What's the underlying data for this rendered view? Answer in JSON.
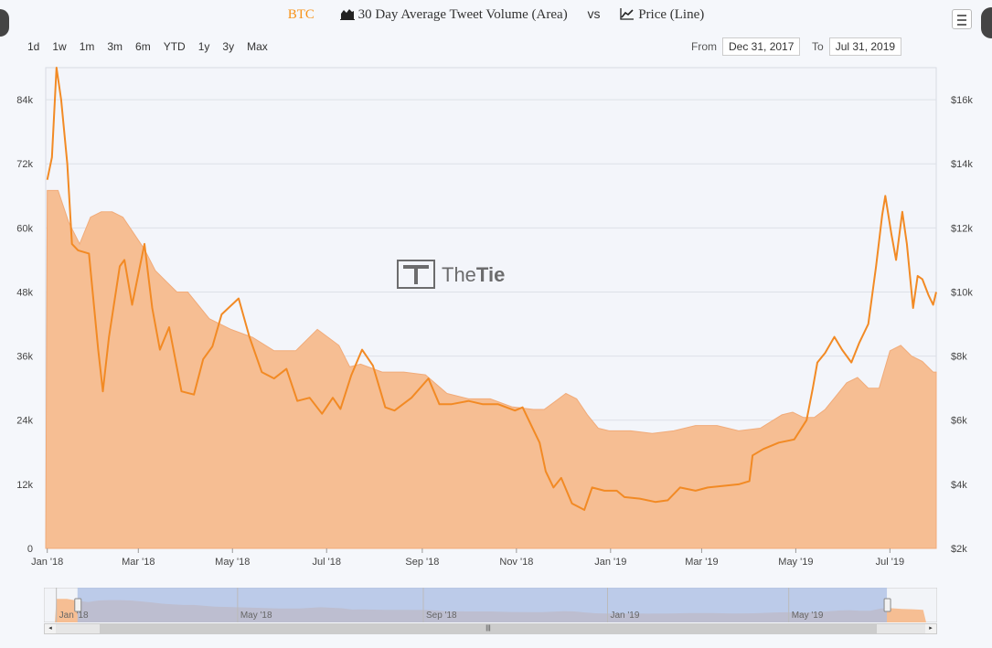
{
  "header": {
    "symbol": "BTC",
    "area_label": "30 Day Average Tweet Volume (Area)",
    "vs_label": "vs",
    "line_label": "Price (Line)"
  },
  "range_selector": {
    "buttons": [
      "1d",
      "1w",
      "1m",
      "3m",
      "6m",
      "YTD",
      "1y",
      "3y",
      "Max"
    ],
    "from_label": "From",
    "from_value": "Dec 31, 2017",
    "to_label": "To",
    "to_value": "Jul 31, 2019"
  },
  "watermark": {
    "text_light": "The",
    "text_bold": "Tie"
  },
  "colors": {
    "area_fill": "#f6be93",
    "line": "#f28a24",
    "accent": "#f7931a",
    "navigator_mask": "#a9bde4"
  },
  "chart_data": {
    "type": "area",
    "x_ticks": [
      "Jan '18",
      "Mar '18",
      "May '18",
      "Jul '18",
      "Sep '18",
      "Nov '18",
      "Jan '19",
      "Mar '19",
      "May '19",
      "Jul '19"
    ],
    "x_range": [
      "2017-12-31",
      "2019-07-31"
    ],
    "y_left": {
      "ticks": [
        "0",
        "12k",
        "24k",
        "36k",
        "48k",
        "60k",
        "72k",
        "84k"
      ],
      "range": [
        0,
        90000
      ]
    },
    "y_right": {
      "ticks": [
        "$2k",
        "$4k",
        "$6k",
        "$8k",
        "$10k",
        "$12k",
        "$14k",
        "$16k"
      ],
      "range": [
        2000,
        17000
      ]
    },
    "grid": true,
    "navigator_ticks": [
      "Jan '18",
      "May '18",
      "Sep '18",
      "Jan '19",
      "May '19"
    ],
    "series": [
      {
        "type": "area",
        "x": [
          "2018-01-01",
          "2018-01-08",
          "2018-01-15",
          "2018-01-22",
          "2018-01-29",
          "2018-02-05",
          "2018-02-12",
          "2018-02-19",
          "2018-02-26",
          "2018-03-05",
          "2018-03-12",
          "2018-03-19",
          "2018-03-26",
          "2018-04-02",
          "2018-04-16",
          "2018-04-30",
          "2018-05-14",
          "2018-05-28",
          "2018-06-11",
          "2018-06-25",
          "2018-07-09",
          "2018-07-16",
          "2018-07-23",
          "2018-08-06",
          "2018-08-20",
          "2018-09-03",
          "2018-09-17",
          "2018-10-01",
          "2018-10-15",
          "2018-10-29",
          "2018-11-12",
          "2018-11-19",
          "2018-11-26",
          "2018-12-03",
          "2018-12-10",
          "2018-12-17",
          "2018-12-24",
          "2018-12-31",
          "2019-01-14",
          "2019-01-28",
          "2019-02-11",
          "2019-02-25",
          "2019-03-11",
          "2019-03-25",
          "2019-04-08",
          "2019-04-22",
          "2019-04-29",
          "2019-05-06",
          "2019-05-13",
          "2019-05-20",
          "2019-05-27",
          "2019-06-03",
          "2019-06-10",
          "2019-06-17",
          "2019-06-24",
          "2019-07-01",
          "2019-07-08",
          "2019-07-15",
          "2019-07-22",
          "2019-07-29"
        ],
        "values": [
          67000,
          67000,
          61000,
          57000,
          62000,
          63000,
          63000,
          62000,
          59000,
          56000,
          52000,
          50000,
          48000,
          48000,
          43000,
          41000,
          39500,
          37000,
          37000,
          41000,
          38000,
          34000,
          34500,
          33000,
          33000,
          32500,
          29000,
          28000,
          28000,
          26500,
          26000,
          26000,
          27500,
          29000,
          28000,
          25000,
          22500,
          22000,
          22000,
          21500,
          22000,
          23000,
          23000,
          22000,
          22500,
          25000,
          25500,
          24500,
          24500,
          26000,
          28500,
          31000,
          32000,
          30000,
          30000,
          37000,
          38000,
          36000,
          35000,
          33000
        ]
      },
      {
        "type": "line",
        "x": [
          "2018-01-01",
          "2018-01-04",
          "2018-01-07",
          "2018-01-10",
          "2018-01-14",
          "2018-01-17",
          "2018-01-21",
          "2018-01-28",
          "2018-02-03",
          "2018-02-06",
          "2018-02-10",
          "2018-02-17",
          "2018-02-20",
          "2018-02-25",
          "2018-03-05",
          "2018-03-10",
          "2018-03-15",
          "2018-03-21",
          "2018-03-29",
          "2018-04-06",
          "2018-04-12",
          "2018-04-18",
          "2018-04-24",
          "2018-05-05",
          "2018-05-12",
          "2018-05-20",
          "2018-05-28",
          "2018-06-05",
          "2018-06-12",
          "2018-06-20",
          "2018-06-28",
          "2018-07-05",
          "2018-07-10",
          "2018-07-17",
          "2018-07-24",
          "2018-07-31",
          "2018-08-08",
          "2018-08-14",
          "2018-08-25",
          "2018-09-05",
          "2018-09-12",
          "2018-09-20",
          "2018-10-01",
          "2018-10-10",
          "2018-10-20",
          "2018-10-31",
          "2018-11-05",
          "2018-11-13",
          "2018-11-16",
          "2018-11-20",
          "2018-11-25",
          "2018-11-30",
          "2018-12-07",
          "2018-12-15",
          "2018-12-20",
          "2018-12-28",
          "2019-01-05",
          "2019-01-10",
          "2019-01-20",
          "2019-01-30",
          "2019-02-07",
          "2019-02-15",
          "2019-02-25",
          "2019-03-05",
          "2019-03-15",
          "2019-03-25",
          "2019-04-01",
          "2019-04-03",
          "2019-04-10",
          "2019-04-20",
          "2019-04-30",
          "2019-05-08",
          "2019-05-12",
          "2019-05-15",
          "2019-05-20",
          "2019-05-26",
          "2019-05-31",
          "2019-06-06",
          "2019-06-11",
          "2019-06-17",
          "2019-06-22",
          "2019-06-26",
          "2019-06-28",
          "2019-07-02",
          "2019-07-05",
          "2019-07-09",
          "2019-07-12",
          "2019-07-16",
          "2019-07-19",
          "2019-07-22",
          "2019-07-26",
          "2019-07-29",
          "2019-07-31"
        ],
        "values": [
          13500,
          14200,
          17000,
          16000,
          14000,
          11500,
          11300,
          11200,
          8200,
          6900,
          8600,
          10800,
          11000,
          9600,
          11500,
          9500,
          8200,
          8900,
          6900,
          6800,
          7900,
          8300,
          9300,
          9800,
          8600,
          7500,
          7300,
          7600,
          6600,
          6700,
          6200,
          6700,
          6350,
          7400,
          8200,
          7700,
          6400,
          6300,
          6700,
          7300,
          6500,
          6500,
          6600,
          6500,
          6500,
          6300,
          6400,
          5600,
          5300,
          4400,
          3900,
          4200,
          3400,
          3200,
          3900,
          3800,
          3800,
          3600,
          3550,
          3450,
          3500,
          3900,
          3800,
          3900,
          3950,
          4000,
          4100,
          4900,
          5100,
          5300,
          5400,
          6000,
          7000,
          7800,
          8100,
          8600,
          8200,
          7800,
          8400,
          9000,
          10800,
          12400,
          13000,
          11800,
          11000,
          12500,
          11500,
          9500,
          10500,
          10400,
          9900,
          9600,
          10000
        ]
      }
    ]
  }
}
